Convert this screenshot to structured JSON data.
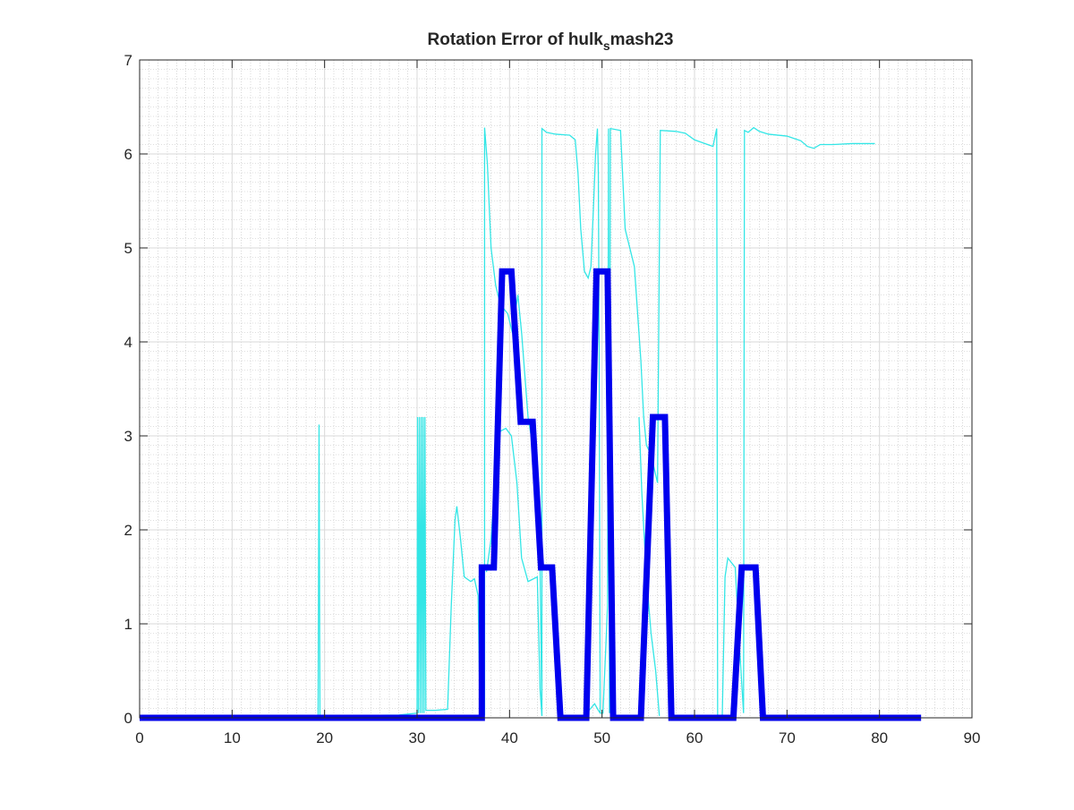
{
  "chart_data": {
    "type": "line",
    "title": "Rotation Error of hulk",
    "title_subscript": "s",
    "title_tail": "mash23",
    "xlabel": "",
    "ylabel": "",
    "xlim": [
      0,
      90
    ],
    "ylim": [
      0,
      7
    ],
    "xticks": [
      "0",
      "10",
      "20",
      "30",
      "40",
      "50",
      "60",
      "70",
      "80",
      "90"
    ],
    "yticks": [
      "0",
      "1",
      "2",
      "3",
      "4",
      "5",
      "6",
      "7"
    ],
    "grid": true,
    "minor_grid": true,
    "colors": {
      "series_1": "#33e6e6",
      "series_2": "#0000ee",
      "axes": "#262626",
      "grid": "#d9d9d9",
      "minor_grid": "#bfbfbf"
    },
    "series": [
      {
        "line_style": "thin",
        "points": [
          [
            0,
            0.02
          ],
          [
            19.3,
            0.02
          ],
          [
            19.4,
            3.12
          ],
          [
            19.5,
            0.02
          ],
          [
            28,
            0.03
          ],
          [
            30,
            0.05
          ],
          [
            30.05,
            3.2
          ],
          [
            30.15,
            0.05
          ],
          [
            30.25,
            3.2
          ],
          [
            30.35,
            0.05
          ],
          [
            30.45,
            3.2
          ],
          [
            30.55,
            0.05
          ],
          [
            30.65,
            3.2
          ],
          [
            30.75,
            0.05
          ],
          [
            30.85,
            3.2
          ],
          [
            30.95,
            0.08
          ],
          [
            32,
            0.08
          ],
          [
            33.3,
            0.09
          ],
          [
            33.7,
            1.2
          ],
          [
            34.1,
            2.1
          ],
          [
            34.3,
            2.25
          ],
          [
            34.7,
            1.9
          ],
          [
            35.1,
            1.5
          ],
          [
            35.8,
            1.45
          ],
          [
            36.2,
            1.48
          ],
          [
            36.6,
            1.3
          ],
          [
            36.8,
            0.03
          ],
          [
            37.3,
            0.03
          ],
          [
            37.3,
            6.28
          ],
          [
            37.6,
            5.9
          ],
          [
            38,
            5.0
          ],
          [
            38.5,
            4.6
          ],
          [
            39,
            4.4
          ],
          [
            39.8,
            4.3
          ],
          [
            40.3,
            4.1
          ],
          [
            40.9,
            4.5
          ],
          [
            41.3,
            4.1
          ],
          [
            42,
            3.2
          ],
          [
            43,
            2.6
          ],
          [
            43.3,
            1.6
          ],
          [
            43.5,
            0.02
          ],
          [
            43.5,
            6.27
          ],
          [
            44,
            6.23
          ],
          [
            45,
            6.21
          ],
          [
            46.5,
            6.2
          ],
          [
            47.1,
            6.15
          ],
          [
            47.4,
            5.8
          ],
          [
            47.7,
            5.2
          ],
          [
            48.1,
            4.75
          ],
          [
            48.5,
            4.68
          ],
          [
            48.8,
            4.8
          ],
          [
            49.1,
            5.5
          ],
          [
            49.3,
            6.0
          ],
          [
            49.5,
            6.27
          ],
          [
            49.6,
            5.8
          ],
          [
            49.7,
            3.6
          ],
          [
            49.8,
            0.05
          ],
          [
            50.1,
            0.05
          ],
          [
            50.6,
            1.2
          ],
          [
            50.7,
            6.27
          ],
          [
            50.8,
            0.05
          ],
          [
            50.9,
            6.27
          ],
          [
            52,
            6.25
          ],
          [
            52.5,
            5.2
          ],
          [
            53.5,
            4.8
          ],
          [
            54.2,
            3.8
          ],
          [
            54.5,
            3.2
          ],
          [
            54.8,
            2.9
          ],
          [
            55.3,
            2.8
          ],
          [
            56,
            2.5
          ],
          [
            56.3,
            6.25
          ],
          [
            58,
            6.24
          ],
          [
            59,
            6.22
          ],
          [
            60,
            6.15
          ],
          [
            62,
            6.08
          ],
          [
            62.4,
            6.27
          ],
          [
            62.5,
            0.02
          ],
          [
            63,
            0.02
          ],
          [
            63.3,
            1.5
          ],
          [
            63.6,
            1.7
          ],
          [
            64.4,
            1.6
          ],
          [
            64.9,
            0.7
          ],
          [
            65.3,
            0.05
          ],
          [
            65.4,
            6.25
          ],
          [
            65.8,
            6.23
          ],
          [
            66.4,
            6.28
          ],
          [
            67,
            6.24
          ],
          [
            68,
            6.21
          ],
          [
            70,
            6.19
          ],
          [
            71.5,
            6.14
          ],
          [
            72.2,
            6.08
          ],
          [
            72.9,
            6.06
          ],
          [
            73.6,
            6.1
          ],
          [
            75,
            6.1
          ],
          [
            77,
            6.11
          ],
          [
            79.5,
            6.11
          ]
        ]
      },
      {
        "line_style": "thin",
        "points": [
          [
            37.5,
            1.55
          ],
          [
            38,
            1.9
          ],
          [
            38.5,
            2.6
          ],
          [
            39,
            3.05
          ],
          [
            39.6,
            3.08
          ],
          [
            40.2,
            3.0
          ],
          [
            40.8,
            2.5
          ],
          [
            41.3,
            1.7
          ],
          [
            42,
            1.45
          ],
          [
            43,
            1.5
          ],
          [
            43.3,
            0.3
          ],
          [
            43.5,
            0.02
          ]
        ]
      },
      {
        "line_style": "thin",
        "points": [
          [
            48.3,
            0.02
          ],
          [
            48.6,
            0.08
          ],
          [
            49.2,
            0.15
          ],
          [
            49.6,
            0.08
          ],
          [
            49.8,
            0.05
          ]
        ]
      },
      {
        "line_style": "thin",
        "points": [
          [
            54,
            3.2
          ],
          [
            54.3,
            2.4
          ],
          [
            54.8,
            1.5
          ],
          [
            55.3,
            0.9
          ],
          [
            55.8,
            0.5
          ],
          [
            56.2,
            0.02
          ]
        ]
      },
      {
        "line_style": "thick",
        "points": [
          [
            0,
            0
          ],
          [
            37,
            0
          ],
          [
            37,
            1.6
          ],
          [
            38.3,
            1.6
          ],
          [
            39.2,
            4.75
          ],
          [
            40.2,
            4.75
          ],
          [
            41.2,
            3.15
          ],
          [
            42.5,
            3.15
          ],
          [
            43.4,
            1.6
          ],
          [
            44.6,
            1.6
          ],
          [
            45.5,
            0
          ],
          [
            48.3,
            0
          ],
          [
            49.4,
            4.75
          ],
          [
            50.6,
            4.75
          ],
          [
            51.2,
            0
          ],
          [
            54.2,
            0
          ],
          [
            55.5,
            3.2
          ],
          [
            56.8,
            3.2
          ],
          [
            57.5,
            0
          ],
          [
            64.2,
            0
          ],
          [
            65.1,
            1.6
          ],
          [
            66.6,
            1.6
          ],
          [
            67.4,
            0
          ],
          [
            84.5,
            0
          ]
        ]
      }
    ]
  }
}
